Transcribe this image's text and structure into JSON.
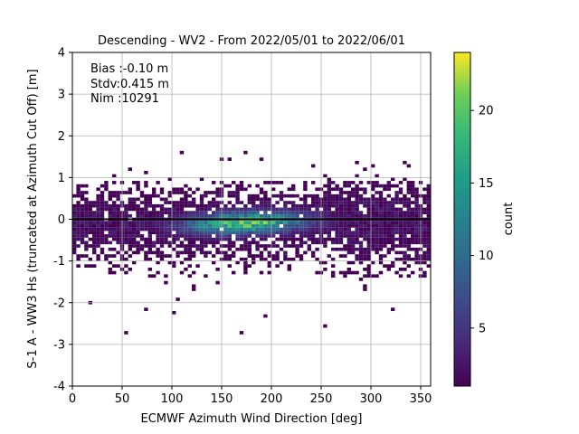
{
  "chart_data": {
    "type": "heatmap",
    "title": "Descending - WV2 - From 2022/05/01 to 2022/06/01",
    "xlabel": "ECMWF Azimuth Wind Direction [deg]",
    "ylabel": "S-1 A - WW3 Hs (truncated at Azimuth Cut Off) [m]",
    "xlim": [
      0,
      360
    ],
    "ylim": [
      -4,
      4
    ],
    "xticks": [
      0,
      50,
      100,
      150,
      200,
      250,
      300,
      350
    ],
    "yticks": [
      -4,
      -3,
      -2,
      -1,
      0,
      1,
      2,
      3,
      4
    ],
    "grid": true,
    "reference_line_y": 0,
    "annotations": [
      {
        "label": "Bias",
        "text": "Bias :-0.10 m"
      },
      {
        "label": "Stdv",
        "text": "Stdv:0.415 m"
      },
      {
        "label": "Nim",
        "text": "Nim :10291"
      }
    ],
    "colorbar": {
      "label": "count",
      "range": [
        1,
        24
      ],
      "ticks": [
        5,
        10,
        15,
        20
      ],
      "colormap": "viridis"
    },
    "density": {
      "x_bin_deg": 4,
      "y_bin_m": 0.08,
      "peak_x": 175,
      "peak_y": -0.12,
      "peak_count": 24
    }
  }
}
